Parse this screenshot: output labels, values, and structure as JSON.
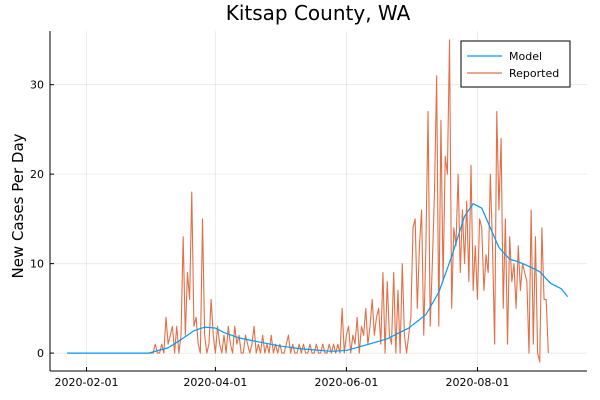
{
  "chart_data": {
    "type": "line",
    "title": "Kitsap County, WA",
    "xlabel": "",
    "ylabel": "New Cases Per Day",
    "x_start": "2020-01-23",
    "x_end": "2020-09-12",
    "xlim": [
      "2020-01-15",
      "2020-09-21"
    ],
    "ylim": [
      -2,
      36
    ],
    "x_ticks": [
      "2020-02-01",
      "2020-04-01",
      "2020-06-01",
      "2020-08-01"
    ],
    "y_ticks": [
      0,
      10,
      20,
      30
    ],
    "grid": true,
    "legend_position": "top-right",
    "series": [
      {
        "name": "Model",
        "color": "#009AFA",
        "points": [
          [
            "2020-01-23",
            0
          ],
          [
            "2020-03-01",
            0
          ],
          [
            "2020-03-10",
            0.6
          ],
          [
            "2020-03-16",
            1.5
          ],
          [
            "2020-03-22",
            2.5
          ],
          [
            "2020-03-27",
            2.9
          ],
          [
            "2020-04-01",
            2.8
          ],
          [
            "2020-04-05",
            2.3
          ],
          [
            "2020-04-12",
            1.7
          ],
          [
            "2020-04-20",
            1.3
          ],
          [
            "2020-05-01",
            0.8
          ],
          [
            "2020-05-10",
            0.5
          ],
          [
            "2020-05-25",
            0.2
          ],
          [
            "2020-06-01",
            0.3
          ],
          [
            "2020-06-10",
            0.9
          ],
          [
            "2020-06-20",
            1.6
          ],
          [
            "2020-06-30",
            2.8
          ],
          [
            "2020-07-08",
            4.3
          ],
          [
            "2020-07-14",
            6.8
          ],
          [
            "2020-07-20",
            10.8
          ],
          [
            "2020-07-26",
            15.3
          ],
          [
            "2020-07-30",
            16.7
          ],
          [
            "2020-08-03",
            16.2
          ],
          [
            "2020-08-07",
            14.0
          ],
          [
            "2020-08-11",
            11.8
          ],
          [
            "2020-08-16",
            10.5
          ],
          [
            "2020-08-20",
            10.2
          ],
          [
            "2020-08-25",
            9.7
          ],
          [
            "2020-08-30",
            9.1
          ],
          [
            "2020-09-04",
            7.8
          ],
          [
            "2020-09-09",
            7.2
          ],
          [
            "2020-09-12",
            6.3
          ]
        ]
      },
      {
        "name": "Reported",
        "color": "#E26F46",
        "daily_from": "2020-03-04",
        "daily_values": [
          1,
          0,
          0,
          1,
          0,
          4,
          1,
          2,
          3,
          0,
          3,
          0,
          2,
          13,
          2,
          9,
          6,
          18,
          3,
          4,
          1,
          0,
          15,
          2,
          0,
          1,
          6,
          2,
          0,
          3,
          1,
          0,
          2,
          0,
          3,
          1,
          0,
          3,
          1,
          2,
          0,
          0,
          2,
          1,
          0,
          1,
          3,
          0,
          1,
          0,
          2,
          0,
          1,
          0,
          2,
          0,
          1,
          0,
          1,
          0,
          0,
          1,
          2,
          0,
          1,
          0,
          0,
          1,
          0,
          1,
          0,
          0,
          1,
          0,
          0,
          1,
          0,
          0,
          1,
          0,
          0,
          1,
          0,
          1,
          0,
          1,
          0,
          5,
          0,
          2,
          3,
          0,
          2,
          1,
          4,
          0,
          3,
          2,
          5,
          1,
          3,
          6,
          2,
          4,
          5,
          1,
          9,
          0,
          8,
          2,
          1,
          9,
          0,
          7,
          0,
          10,
          2,
          0,
          2,
          4,
          14,
          15,
          5,
          12,
          16,
          2,
          12,
          27,
          3,
          10,
          18,
          31,
          3,
          26,
          8,
          22,
          20,
          35,
          5,
          14,
          12,
          20,
          9,
          16,
          10,
          17,
          8,
          21,
          7,
          12,
          6,
          15,
          14,
          7,
          11,
          9,
          20,
          12,
          1,
          27,
          16,
          24,
          5,
          15,
          1,
          13,
          8,
          10,
          5,
          12,
          7,
          10,
          9,
          8,
          0,
          16,
          1,
          13,
          0,
          -1,
          14,
          6,
          6,
          0
        ]
      }
    ]
  }
}
